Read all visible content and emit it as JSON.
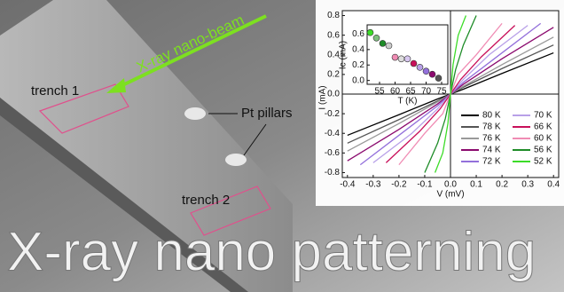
{
  "annotations": {
    "beam": "X-ray nano-beam",
    "trench1": "trench 1",
    "pillars": "Pt pillars",
    "trench2": "trench 2",
    "banner": "X-ray nano patterning"
  },
  "chart_data": [
    {
      "type": "line",
      "x_label": "V (mV)",
      "y_label": "I (mA)",
      "xlim": [
        -0.42,
        0.42
      ],
      "ylim": [
        -0.85,
        0.85
      ],
      "xticks": [
        -0.4,
        -0.3,
        -0.2,
        -0.1,
        {
          "value": 0,
          "label": "0.0"
        },
        0.1,
        0.2,
        0.3,
        0.4
      ],
      "yticks": [
        0.8,
        0.6,
        0.4,
        0.2,
        {
          "value": 0,
          "label": "0.0"
        },
        -0.2,
        -0.4,
        -0.6,
        -0.8
      ],
      "series": [
        {
          "name": "80 K",
          "color": "#000000",
          "x": [
            -0.4,
            -0.2,
            -0.05,
            0,
            0.05,
            0.2,
            0.4
          ],
          "values": [
            -0.42,
            -0.21,
            -0.05,
            0,
            0.05,
            0.21,
            0.42
          ]
        },
        {
          "name": "78 K",
          "color": "#555555",
          "x": [
            -0.4,
            -0.2,
            -0.05,
            0,
            0.05,
            0.2,
            0.4
          ],
          "values": [
            -0.5,
            -0.26,
            -0.07,
            0,
            0.07,
            0.26,
            0.5
          ]
        },
        {
          "name": "76 K",
          "color": "#999999",
          "x": [
            -0.4,
            -0.2,
            -0.05,
            0,
            0.05,
            0.2,
            0.4
          ],
          "values": [
            -0.58,
            -0.3,
            -0.08,
            0,
            0.08,
            0.3,
            0.58
          ]
        },
        {
          "name": "74 K",
          "color": "#8b0a6e",
          "x": [
            -0.4,
            -0.2,
            -0.05,
            0,
            0.05,
            0.2,
            0.4
          ],
          "values": [
            -0.68,
            -0.36,
            -0.1,
            0,
            0.1,
            0.36,
            0.68
          ]
        },
        {
          "name": "72 K",
          "color": "#9370db",
          "x": [
            -0.35,
            -0.2,
            -0.05,
            0,
            0.05,
            0.2,
            0.35
          ],
          "values": [
            -0.72,
            -0.42,
            -0.12,
            0,
            0.12,
            0.42,
            0.72
          ]
        },
        {
          "name": "70 K",
          "color": "#b8a0e8",
          "x": [
            -0.3,
            -0.15,
            -0.05,
            0,
            0.05,
            0.15,
            0.3
          ],
          "values": [
            -0.7,
            -0.4,
            -0.15,
            0,
            0.15,
            0.4,
            0.7
          ]
        },
        {
          "name": "66 K",
          "color": "#c8105a",
          "x": [
            -0.25,
            -0.12,
            -0.04,
            0,
            0.04,
            0.12,
            0.25
          ],
          "values": [
            -0.7,
            -0.38,
            -0.15,
            0,
            0.15,
            0.38,
            0.7
          ]
        },
        {
          "name": "60 K",
          "color": "#f08cb4",
          "x": [
            -0.2,
            -0.1,
            -0.03,
            0,
            0.03,
            0.1,
            0.2
          ],
          "values": [
            -0.72,
            -0.4,
            -0.2,
            0,
            0.2,
            0.4,
            0.72
          ]
        },
        {
          "name": "56 K",
          "color": "#1e8c28",
          "x": [
            -0.1,
            -0.05,
            -0.02,
            0,
            0.02,
            0.05,
            0.1
          ],
          "values": [
            -0.8,
            -0.5,
            -0.25,
            0,
            0.25,
            0.5,
            0.8
          ]
        },
        {
          "name": "52 K",
          "color": "#3cdc28",
          "x": [
            -0.06,
            -0.03,
            -0.01,
            0,
            0.01,
            0.03,
            0.06
          ],
          "values": [
            -0.8,
            -0.6,
            -0.3,
            0,
            0.3,
            0.6,
            0.8
          ]
        }
      ]
    },
    {
      "type": "scatter",
      "x_label": "T (K)",
      "y_label": "Ic (mA)",
      "xlim": [
        51,
        77
      ],
      "ylim": [
        -0.05,
        0.72
      ],
      "xticks": [
        55,
        60,
        65,
        70,
        75
      ],
      "yticks": [
        {
          "value": 0,
          "label": "0.0"
        },
        0.2,
        0.4,
        0.6
      ],
      "x": [
        52,
        54,
        56,
        58,
        60,
        62,
        64,
        66,
        68,
        70,
        72,
        74
      ],
      "values": [
        0.62,
        0.55,
        0.48,
        0.45,
        0.3,
        0.28,
        0.28,
        0.22,
        0.17,
        0.12,
        0.08,
        0.03
      ],
      "colors": [
        "#3cdc28",
        "#7fbf7f",
        "#1e8c28",
        "#cccccc",
        "#f08cb4",
        "#dddddd",
        "#d8c8f0",
        "#c8105a",
        "#b8a0e8",
        "#9370db",
        "#8b0a6e",
        "#555555"
      ]
    }
  ]
}
